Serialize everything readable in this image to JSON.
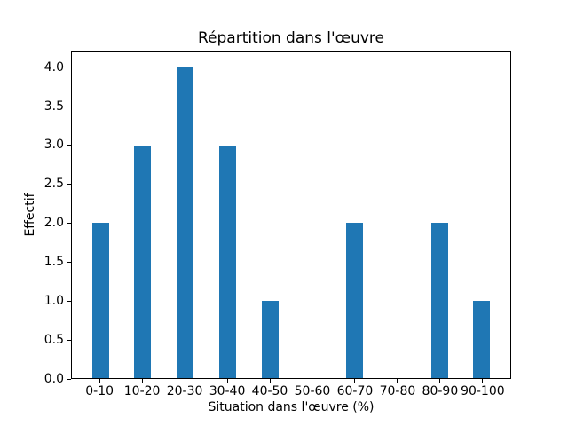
{
  "chart_data": {
    "type": "bar",
    "title": "Répartition dans l'œuvre",
    "xlabel": "Situation dans l'œuvre (%)",
    "ylabel": "Effectif",
    "categories": [
      "0-10",
      "10-20",
      "20-30",
      "30-40",
      "40-50",
      "50-60",
      "60-70",
      "70-80",
      "80-90",
      "90-100"
    ],
    "values": [
      2,
      3,
      4,
      3,
      1,
      0,
      2,
      0,
      2,
      1
    ],
    "yticks": [
      0.0,
      0.5,
      1.0,
      1.5,
      2.0,
      2.5,
      3.0,
      3.5,
      4.0
    ],
    "ytick_labels": [
      "0.0",
      "0.5",
      "1.0",
      "1.5",
      "2.0",
      "2.5",
      "3.0",
      "3.5",
      "4.0"
    ],
    "ylim": [
      0,
      4.2
    ],
    "bar_color": "#1f77b4",
    "axis_color": "#000000",
    "background_color": "#ffffff",
    "grid": false,
    "legend_position": "none"
  }
}
